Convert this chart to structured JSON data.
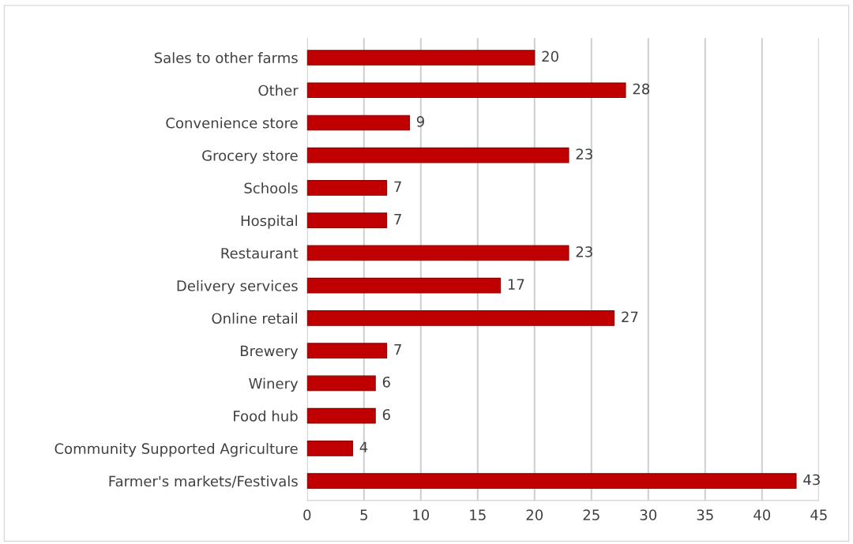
{
  "chart_data": {
    "type": "bar",
    "orientation": "horizontal",
    "categories": [
      "Sales to other farms",
      "Other",
      "Convenience store",
      "Grocery store",
      "Schools",
      "Hospital",
      "Restaurant",
      "Delivery services",
      "Online retail",
      "Brewery",
      "Winery",
      "Food hub",
      "Community Supported Agriculture",
      "Farmer's markets/Festivals"
    ],
    "values": [
      20,
      28,
      9,
      23,
      7,
      7,
      23,
      17,
      27,
      7,
      6,
      6,
      4,
      43
    ],
    "color": "#c00000",
    "xlim": [
      0,
      45
    ],
    "xticks": [
      0,
      5,
      10,
      15,
      20,
      25,
      30,
      35,
      40,
      45
    ],
    "grid": "x",
    "data_labels": true
  }
}
